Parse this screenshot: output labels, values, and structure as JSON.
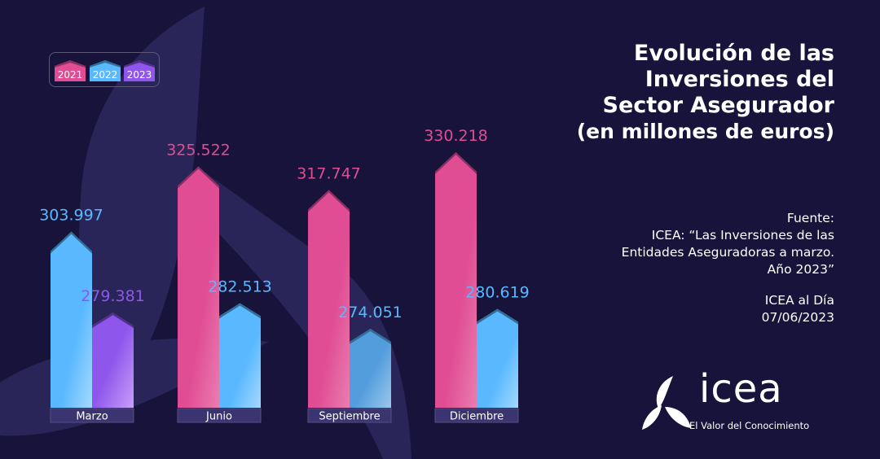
{
  "title": {
    "line1": "Evolución de las",
    "line2": "Inversiones del",
    "line3": "Sector Asegurador",
    "line4": "(en millones de euros)"
  },
  "source": {
    "label": "Fuente:",
    "line1": "ICEA: “Las Inversiones de las",
    "line2": "Entidades Aseguradoras a marzo.",
    "line3": "Año 2023”",
    "pub": "ICEA al Día",
    "date": "07/06/2023"
  },
  "logo": {
    "wordmark": "icea",
    "tagline": "El Valor del Conocimiento"
  },
  "colors": {
    "background": "#17133a",
    "bg_shape": "#2a2558",
    "2021": "#e04d94",
    "2022": "#59b8ff",
    "2023": "#8f56ec"
  },
  "chart_data": {
    "type": "bar",
    "title": "Evolución de las Inversiones del Sector Asegurador (en millones de euros)",
    "xlabel": "",
    "ylabel": "",
    "legend": [
      "2021",
      "2022",
      "2023"
    ],
    "legend_position": "top-left",
    "grid": false,
    "categories": [
      "Marzo",
      "Junio",
      "Septiembre",
      "Diciembre"
    ],
    "groups": [
      {
        "category": "Marzo",
        "bars": [
          {
            "series": "2022",
            "value": 303997,
            "label": "303.997"
          },
          {
            "series": "2023",
            "value": 279381,
            "label": "279.381"
          }
        ]
      },
      {
        "category": "Junio",
        "bars": [
          {
            "series": "2021",
            "value": 325522,
            "label": "325.522"
          },
          {
            "series": "2022",
            "value": 282513,
            "label": "282.513"
          }
        ]
      },
      {
        "category": "Septiembre",
        "bars": [
          {
            "series": "2021",
            "value": 317747,
            "label": "317.747"
          },
          {
            "series": "2022",
            "value": 274051,
            "label": "274.051"
          }
        ]
      },
      {
        "category": "Diciembre",
        "bars": [
          {
            "series": "2021",
            "value": 330218,
            "label": "330.218"
          },
          {
            "series": "2022",
            "value": 280619,
            "label": "280.619"
          }
        ]
      }
    ],
    "ylim": [
      200000,
      335000
    ]
  }
}
